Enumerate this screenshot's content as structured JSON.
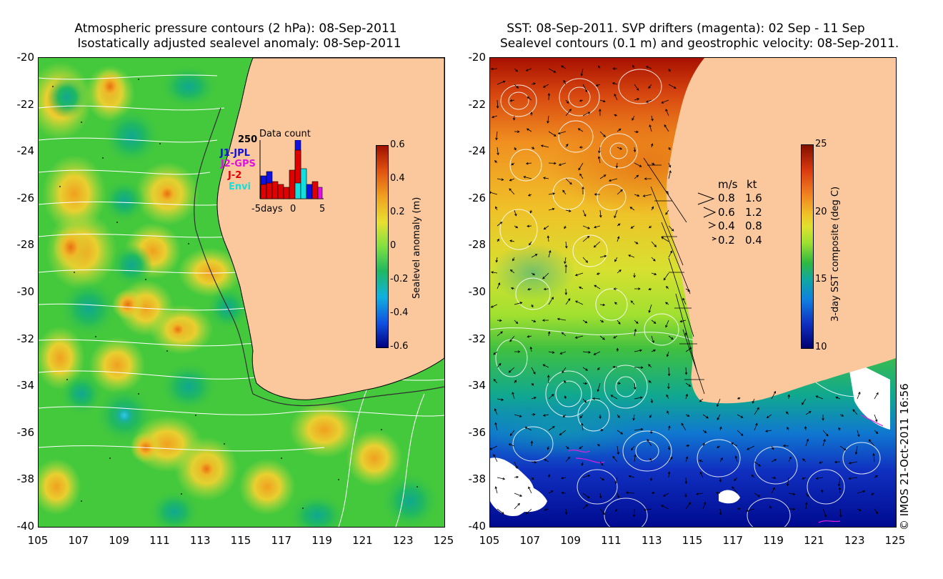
{
  "left_panel": {
    "title_line1": "Atmospheric pressure contours (2 hPa): 08-Sep-2011",
    "title_line2": "Isostatically adjusted sealevel anomaly: 08-Sep-2011",
    "y_ticks": [
      "-20",
      "-22",
      "-24",
      "-26",
      "-28",
      "-30",
      "-32",
      "-34",
      "-36",
      "-38",
      "-40"
    ],
    "x_ticks": [
      "105",
      "107",
      "109",
      "111",
      "113",
      "115",
      "117",
      "119",
      "121",
      "123",
      "125"
    ],
    "colorbar": {
      "label": "Sealevel anomaly (m)",
      "ticks": [
        "0.6",
        "0.4",
        "0.2",
        "0",
        "-0.2",
        "-0.4",
        "-0.6"
      ],
      "range": [
        -0.6,
        0.6
      ]
    },
    "inset": {
      "title": "Data count",
      "y_max_label": "250",
      "x_labels": [
        "-5days",
        "0",
        "5"
      ],
      "missions": [
        {
          "name": "J1-JPL",
          "color": "#1010e0"
        },
        {
          "name": "J2-GPS",
          "color": "#e010e0"
        },
        {
          "name": "J-2",
          "color": "#e00000"
        },
        {
          "name": "Envi",
          "color": "#10e0e0"
        }
      ]
    }
  },
  "right_panel": {
    "title_line1": "SST: 08-Sep-2011. SVP drifters (magenta): 02 Sep - 11 Sep",
    "title_line2": "Sealevel contours (0.1 m) and geostrophic velocity: 08-Sep-2011.",
    "y_ticks": [
      "-20",
      "-22",
      "-24",
      "-26",
      "-28",
      "-30",
      "-32",
      "-34",
      "-36",
      "-38",
      "-40"
    ],
    "x_ticks": [
      "105",
      "107",
      "109",
      "111",
      "113",
      "115",
      "117",
      "119",
      "121",
      "123",
      "125"
    ],
    "colorbar": {
      "label": "3-day SST composite (deg C)",
      "ticks": [
        "25",
        "20",
        "15",
        "10"
      ],
      "range": [
        10,
        25
      ]
    },
    "velocity_legend": {
      "header_ms": "m/s",
      "header_kt": "kt",
      "rows": [
        {
          "ms": "0.8",
          "kt": "1.6"
        },
        {
          "ms": "0.6",
          "kt": "1.2"
        },
        {
          "ms": "0.4",
          "kt": "0.8"
        },
        {
          "ms": "0.2",
          "kt": "0.4"
        }
      ]
    }
  },
  "credit": "© IMOS 21-Oct-2011 16:56",
  "colors": {
    "land": "#fac89c",
    "ocean_mid": "#3cc83c",
    "contour": "#ffffff"
  }
}
